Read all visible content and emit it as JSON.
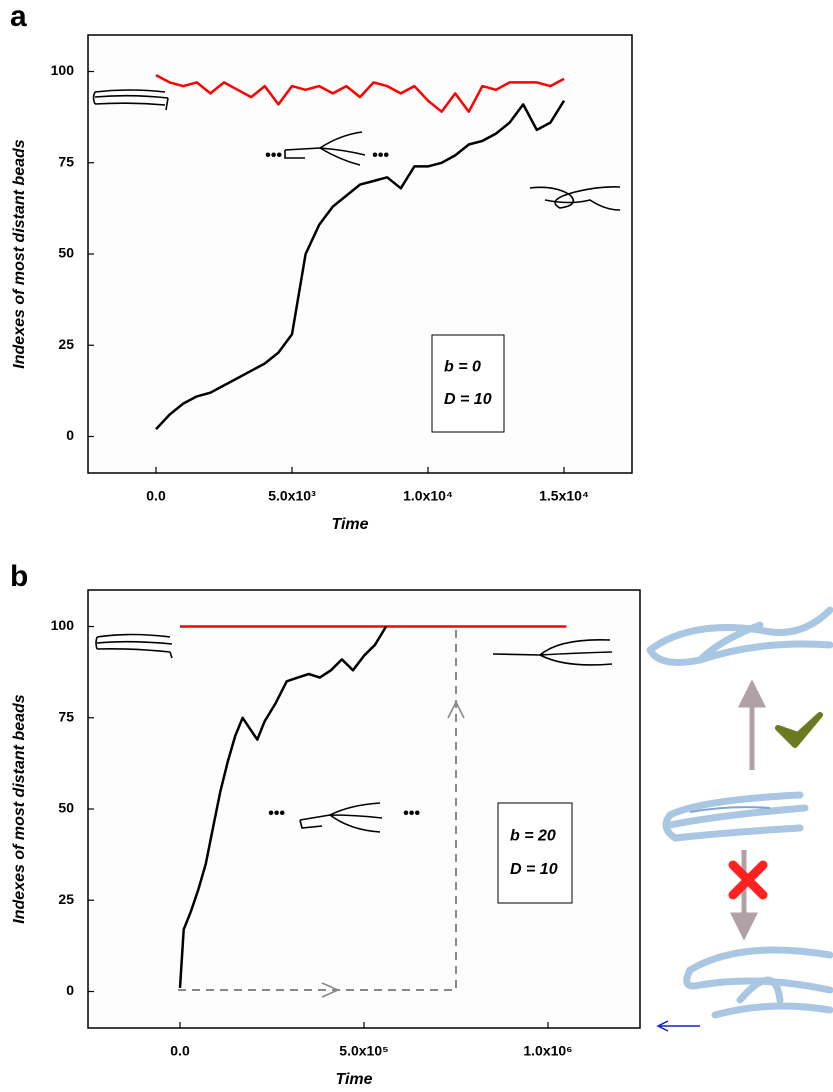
{
  "chart_data": [
    {
      "type": "line",
      "panel_label": "a",
      "x_label": "Time",
      "y_label": "Indexes of most distant beads",
      "annotations": [
        "b = 0",
        "D = 10"
      ],
      "xlim": [
        -2500,
        17500
      ],
      "ylim": [
        -10,
        110
      ],
      "xticks": [
        {
          "value": 0,
          "label": "0.0"
        },
        {
          "value": 5000,
          "label": "5.0x10³"
        },
        {
          "value": 10000,
          "label": "1.0x10⁴"
        },
        {
          "value": 15000,
          "label": "1.5x10⁴"
        }
      ],
      "yticks": [
        0,
        25,
        50,
        75,
        100
      ],
      "series": [
        {
          "color": "#ff0000",
          "x": [
            0,
            500,
            1000,
            1500,
            2000,
            2500,
            3000,
            3500,
            4000,
            4500,
            5000,
            5500,
            6000,
            6500,
            7000,
            7500,
            8000,
            8500,
            9000,
            9500,
            10000,
            10500,
            11000,
            11500,
            12000,
            12500,
            13000,
            13500,
            14000,
            14500,
            15000
          ],
          "values": [
            99,
            97,
            96,
            97,
            94,
            97,
            95,
            93,
            96,
            91,
            96,
            95,
            96,
            94,
            96,
            93,
            97,
            96,
            94,
            96,
            92,
            89,
            94,
            89,
            96,
            95,
            97,
            97,
            97,
            96,
            98
          ]
        },
        {
          "color": "#000000",
          "x": [
            0,
            500,
            1000,
            1500,
            2000,
            2500,
            3000,
            3500,
            4000,
            4500,
            5000,
            5500,
            6000,
            6500,
            7000,
            7500,
            8000,
            8500,
            9000,
            9500,
            10000,
            10500,
            11000,
            11500,
            12000,
            12500,
            13000,
            13500,
            14000,
            14500,
            15000
          ],
          "values": [
            2,
            6,
            9,
            11,
            12,
            14,
            16,
            18,
            20,
            23,
            28,
            50,
            58,
            63,
            66,
            69,
            70,
            71,
            68,
            74,
            74,
            75,
            77,
            80,
            81,
            83,
            86,
            91,
            84,
            86,
            92
          ]
        }
      ]
    },
    {
      "type": "line",
      "panel_label": "b",
      "x_label": "Time",
      "y_label": "Indexes of most distant beads",
      "annotations": [
        "b = 20",
        "D = 10"
      ],
      "xlim": [
        -250000,
        1250000
      ],
      "ylim": [
        -10,
        110
      ],
      "xticks": [
        {
          "value": 0,
          "label": "0.0"
        },
        {
          "value": 500000,
          "label": "5.0x10⁵"
        },
        {
          "value": 1000000,
          "label": "1.0x10⁶"
        }
      ],
      "yticks": [
        0,
        25,
        50,
        75,
        100
      ],
      "series": [
        {
          "color": "#ff0000",
          "x": [
            0,
            1050000
          ],
          "values": [
            100,
            100
          ]
        },
        {
          "color": "#000000",
          "x": [
            0,
            10000,
            30000,
            50000,
            70000,
            90000,
            110000,
            130000,
            150000,
            170000,
            190000,
            210000,
            230000,
            260000,
            290000,
            320000,
            350000,
            380000,
            410000,
            440000,
            470000,
            500000,
            530000,
            560000
          ],
          "values": [
            1,
            17,
            22,
            28,
            35,
            45,
            55,
            63,
            70,
            75,
            72,
            69,
            74,
            79,
            85,
            86,
            87,
            86,
            88,
            91,
            88,
            92,
            95,
            100
          ]
        }
      ]
    }
  ]
}
